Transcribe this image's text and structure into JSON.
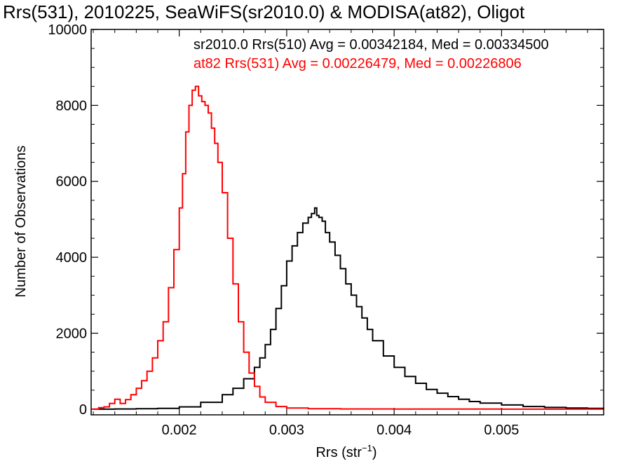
{
  "chart_data": {
    "type": "line",
    "title": "Rrs(531), 2010225, SeaWiFS(sr2010.0) & MODISA(at82), Oligot",
    "xlabel": "Rrs (str",
    "xlabel_superscript": "−1",
    "xlabel_suffix": ")",
    "ylabel": "Number of Observations",
    "xlim": [
      0.00118,
      0.00595
    ],
    "ylim": [
      -150,
      10000
    ],
    "x_ticks": [
      0.002,
      0.003,
      0.004,
      0.005
    ],
    "x_tick_labels": [
      "0.002",
      "0.003",
      "0.004",
      "0.005"
    ],
    "y_ticks": [
      0,
      2000,
      4000,
      6000,
      8000,
      10000
    ],
    "y_tick_labels": [
      "0",
      "2000",
      "4000",
      "6000",
      "8000",
      "10000"
    ],
    "step_style": "histogram",
    "series": [
      {
        "name": "sr2010.0 Rrs(510) Avg = 0.00342184, Med = 0.00334500",
        "color": "#000000",
        "x": [
          0.0012,
          0.0014,
          0.0016,
          0.0018,
          0.002,
          0.0022,
          0.0024,
          0.0025,
          0.0026,
          0.0027,
          0.00275,
          0.0028,
          0.00285,
          0.0029,
          0.00295,
          0.003,
          0.00305,
          0.0031,
          0.00315,
          0.0032,
          0.00323,
          0.00326,
          0.00328,
          0.0033,
          0.00333,
          0.00336,
          0.0034,
          0.00345,
          0.0035,
          0.00355,
          0.0036,
          0.00365,
          0.0037,
          0.00375,
          0.0038,
          0.0039,
          0.004,
          0.0041,
          0.0042,
          0.0043,
          0.0044,
          0.0045,
          0.0046,
          0.0047,
          0.0048,
          0.005,
          0.0052,
          0.0054,
          0.0056,
          0.0058,
          0.00595
        ],
        "y": [
          0,
          5,
          10,
          20,
          60,
          180,
          380,
          550,
          800,
          1100,
          1350,
          1700,
          2100,
          2650,
          3250,
          3900,
          4300,
          4650,
          4900,
          5050,
          5150,
          5300,
          5100,
          5050,
          4950,
          4650,
          4400,
          4050,
          3700,
          3300,
          3000,
          2700,
          2400,
          2100,
          1800,
          1400,
          1100,
          860,
          680,
          520,
          420,
          330,
          260,
          200,
          160,
          110,
          70,
          45,
          30,
          20,
          10
        ]
      },
      {
        "name": "at82 Rrs(531) Avg = 0.00226479, Med = 0.00226806",
        "color": "#ff0000",
        "x": [
          0.00118,
          0.00125,
          0.0013,
          0.00135,
          0.0014,
          0.00145,
          0.0015,
          0.00155,
          0.0016,
          0.00165,
          0.0017,
          0.00175,
          0.0018,
          0.00185,
          0.0019,
          0.00195,
          0.002,
          0.00203,
          0.00206,
          0.00209,
          0.00212,
          0.00215,
          0.00218,
          0.00221,
          0.00224,
          0.00227,
          0.0023,
          0.00233,
          0.00236,
          0.0024,
          0.00245,
          0.0025,
          0.00255,
          0.0026,
          0.00265,
          0.0027,
          0.00275,
          0.0028,
          0.0029,
          0.003,
          0.0032,
          0.0035,
          0.004,
          0.005,
          0.00595
        ],
        "y": [
          0,
          40,
          60,
          150,
          260,
          150,
          250,
          380,
          550,
          750,
          1000,
          1350,
          1800,
          2300,
          3200,
          4200,
          5300,
          6200,
          7300,
          8000,
          8400,
          8500,
          8250,
          8100,
          8000,
          7800,
          7400,
          7000,
          6500,
          5700,
          4500,
          3300,
          2300,
          1500,
          950,
          600,
          320,
          180,
          70,
          30,
          10,
          5,
          2,
          0,
          0
        ]
      }
    ]
  }
}
